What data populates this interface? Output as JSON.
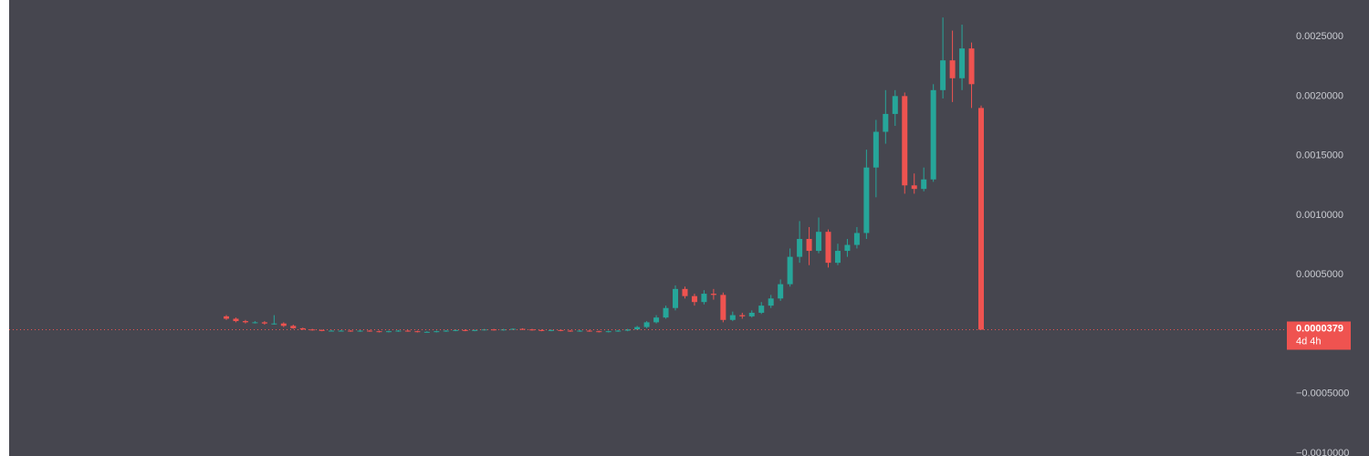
{
  "chart_data": {
    "type": "candlestick",
    "up_color": "#26a69a",
    "down_color": "#ef5350",
    "ylim": [
      -0.001023,
      0.002807
    ],
    "yticks": [
      {
        "value": 0.0025,
        "label": "0.0025000"
      },
      {
        "value": 0.002,
        "label": "0.0020000"
      },
      {
        "value": 0.0015,
        "label": "0.0015000"
      },
      {
        "value": 0.001,
        "label": "0.0010000"
      },
      {
        "value": 0.0005,
        "label": "0.0005000"
      },
      {
        "value": -0.0005,
        "label": "−0.0005000"
      },
      {
        "value": -0.001,
        "label": "−0.0010000"
      }
    ],
    "last_price": {
      "value": 3.79e-05,
      "label": "0.0000379"
    },
    "countdown": "4d 4h",
    "open": [
      0.00015,
      0.00013,
      0.00011,
      0.0001,
      0.0001,
      9e-05,
      9e-05,
      7e-05,
      5e-05,
      4e-05,
      3.5e-05,
      3e-05,
      3e-05,
      3e-05,
      2.5e-05,
      3e-05,
      2.5e-05,
      2e-05,
      2.5e-05,
      3e-05,
      2.5e-05,
      2e-05,
      2e-05,
      2.5e-05,
      3e-05,
      3.5e-05,
      3e-05,
      3.5e-05,
      4e-05,
      3.5e-05,
      4e-05,
      4.5e-05,
      4e-05,
      3.5e-05,
      3e-05,
      3.5e-05,
      3e-05,
      2.5e-05,
      3e-05,
      2.5e-05,
      2e-05,
      2.5e-05,
      3e-05,
      4e-05,
      6e-05,
      0.0001,
      0.00014,
      0.00022,
      0.00038,
      0.00032,
      0.00027,
      0.00034,
      0.00033,
      0.00012,
      0.00016,
      0.00015,
      0.00018,
      0.00024,
      0.0003,
      0.00042,
      0.00065,
      0.0008,
      0.0007,
      0.00086,
      0.0006,
      0.0007,
      0.00075,
      0.00085,
      0.0014,
      0.0017,
      0.00185,
      0.002,
      0.00125,
      0.00122,
      0.0013,
      0.00205,
      0.0023,
      0.00215,
      0.0024,
      0.0019
    ],
    "high": [
      0.00016,
      0.00014,
      0.00012,
      0.00011,
      0.00011,
      0.00016,
      0.0001,
      8e-05,
      5.5e-05,
      4.5e-05,
      4e-05,
      3.5e-05,
      3.5e-05,
      3.5e-05,
      3.5e-05,
      3.5e-05,
      3e-05,
      3e-05,
      3.5e-05,
      3.5e-05,
      3e-05,
      2.5e-05,
      3e-05,
      3.5e-05,
      4e-05,
      4e-05,
      4e-05,
      4.5e-05,
      4.5e-05,
      4.5e-05,
      5e-05,
      5e-05,
      4.5e-05,
      4e-05,
      4e-05,
      4e-05,
      3.5e-05,
      3.5e-05,
      3.5e-05,
      3e-05,
      3e-05,
      3.5e-05,
      4.5e-05,
      7e-05,
      0.00011,
      0.00016,
      0.00024,
      0.00041,
      0.0004,
      0.00034,
      0.00037,
      0.00038,
      0.00035,
      0.00019,
      0.00018,
      0.0002,
      0.00027,
      0.00033,
      0.00046,
      0.00072,
      0.00095,
      0.0009,
      0.00098,
      0.00088,
      0.00076,
      0.0008,
      0.0009,
      0.00155,
      0.0018,
      0.00205,
      0.00205,
      0.00203,
      0.00135,
      0.0014,
      0.0021,
      0.00266,
      0.00255,
      0.0026,
      0.00245,
      0.00192
    ],
    "low": [
      0.00012,
      0.0001,
      9e-05,
      9e-05,
      8e-05,
      8e-05,
      6e-05,
      4.5e-05,
      3.5e-05,
      3e-05,
      2.5e-05,
      2.5e-05,
      2.5e-05,
      2e-05,
      2e-05,
      2e-05,
      1.5e-05,
      1.5e-05,
      2e-05,
      2e-05,
      1.5e-05,
      1.5e-05,
      1.5e-05,
      2e-05,
      2.5e-05,
      2.5e-05,
      2.5e-05,
      3e-05,
      3e-05,
      3e-05,
      3.5e-05,
      3.5e-05,
      3e-05,
      2.5e-05,
      2.5e-05,
      2.5e-05,
      2e-05,
      2e-05,
      2e-05,
      1.5e-05,
      1.5e-05,
      2e-05,
      2.5e-05,
      3.5e-05,
      5e-05,
      9e-05,
      0.00013,
      0.0002,
      0.0003,
      0.00024,
      0.00025,
      0.00029,
      0.0001,
      0.00011,
      0.00013,
      0.00014,
      0.00017,
      0.00022,
      0.00028,
      0.0004,
      0.0006,
      0.00058,
      0.00068,
      0.00056,
      0.00058,
      0.00065,
      0.00072,
      0.0008,
      0.00115,
      0.0016,
      0.00175,
      0.00118,
      0.00118,
      0.0012,
      0.00128,
      0.00198,
      0.00195,
      0.00205,
      0.0019,
      3.79e-05
    ],
    "close": [
      0.00013,
      0.00011,
      0.0001,
      0.0001,
      9e-05,
      9e-05,
      7e-05,
      5e-05,
      4e-05,
      3.5e-05,
      3e-05,
      3e-05,
      3e-05,
      2.5e-05,
      3e-05,
      2.5e-05,
      2e-05,
      2.5e-05,
      3e-05,
      2.5e-05,
      2e-05,
      2e-05,
      2.5e-05,
      3e-05,
      3.5e-05,
      3e-05,
      3.5e-05,
      4e-05,
      3.5e-05,
      4e-05,
      4.5e-05,
      4e-05,
      3.5e-05,
      3e-05,
      3.5e-05,
      3e-05,
      2.5e-05,
      3e-05,
      2.5e-05,
      2e-05,
      2.5e-05,
      3e-05,
      4e-05,
      6e-05,
      0.0001,
      0.00014,
      0.00022,
      0.00038,
      0.00032,
      0.00027,
      0.00034,
      0.00033,
      0.00012,
      0.00016,
      0.00015,
      0.00018,
      0.00024,
      0.0003,
      0.00042,
      0.00065,
      0.0008,
      0.0007,
      0.00086,
      0.0006,
      0.0007,
      0.00075,
      0.00085,
      0.0014,
      0.0017,
      0.00185,
      0.002,
      0.00125,
      0.00122,
      0.0013,
      0.00205,
      0.0023,
      0.00215,
      0.0024,
      0.0021,
      3.79e-05
    ]
  }
}
